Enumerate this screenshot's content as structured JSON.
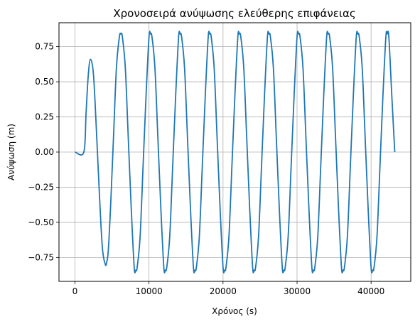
{
  "chart_data": {
    "type": "line",
    "title": "Χρονοσειρά ανύψωσης ελεύθερης επιφάνειας",
    "xlabel": "Χρόνος (s)",
    "ylabel": "Ανύψωση (m)",
    "xlim": [
      -2160,
      45360
    ],
    "ylim": [
      -0.92,
      0.92
    ],
    "xticks": [
      0,
      10000,
      20000,
      30000,
      40000
    ],
    "xtick_labels": [
      "0",
      "10000",
      "20000",
      "30000",
      "40000"
    ],
    "yticks": [
      -0.75,
      -0.5,
      -0.25,
      0.0,
      0.25,
      0.5,
      0.75
    ],
    "ytick_labels": [
      "−0.75",
      "−0.50",
      "−0.25",
      "0.00",
      "0.25",
      "0.50",
      "0.75"
    ],
    "grid": true,
    "line_color": "#1f77b4",
    "series": [
      {
        "x": [
          0,
          1200,
          1500,
          1800,
          2100,
          2500,
          2900,
          3300,
          3700,
          4100,
          4300,
          4500,
          4800,
          5200,
          5600,
          6000,
          6200,
          6400,
          6800,
          7200,
          7600,
          8000,
          8200,
          8400,
          8800,
          9200,
          9600,
          10000,
          10200,
          10400,
          10800,
          11200,
          11600,
          12000,
          12200,
          12400,
          12800,
          13200,
          13600,
          14000,
          14200,
          14400,
          14800,
          15200,
          15600,
          16000,
          16200,
          16400,
          16800,
          17200,
          17600,
          18000,
          18200,
          18400,
          18800,
          19200,
          19600,
          20000,
          20200,
          20400,
          20800,
          21200,
          21600,
          22000,
          22200,
          22400,
          22800,
          23200,
          23600,
          24000,
          24200,
          24400,
          24800,
          25200,
          25600,
          26000,
          26200,
          26400,
          26800,
          27200,
          27600,
          28000,
          28200,
          28400,
          28800,
          29200,
          29600,
          30000,
          30200,
          30400,
          30800,
          31200,
          31600,
          32000,
          32200,
          32400,
          32800,
          33200,
          33600,
          34000,
          34200,
          34400,
          34800,
          35200,
          35600,
          36000,
          36200,
          36400,
          36800,
          37200,
          37600,
          38000,
          38200,
          38400,
          38800,
          39200,
          39600,
          40000,
          40200,
          40400,
          40800,
          41200,
          41600,
          42000,
          42200,
          42400,
          42800,
          43200
        ],
        "y": [
          0.0,
          0.0,
          0.28,
          0.55,
          0.66,
          0.55,
          0.15,
          -0.3,
          -0.68,
          -0.8,
          -0.78,
          -0.7,
          -0.4,
          0.1,
          0.6,
          0.82,
          0.84,
          0.82,
          0.6,
          0.1,
          -0.4,
          -0.82,
          -0.84,
          -0.82,
          -0.6,
          -0.1,
          0.4,
          0.82,
          0.84,
          0.82,
          0.6,
          0.1,
          -0.4,
          -0.82,
          -0.84,
          -0.82,
          -0.6,
          -0.1,
          0.4,
          0.82,
          0.84,
          0.82,
          0.6,
          0.1,
          -0.4,
          -0.82,
          -0.84,
          -0.82,
          -0.6,
          -0.1,
          0.4,
          0.82,
          0.84,
          0.82,
          0.6,
          0.1,
          -0.4,
          -0.82,
          -0.84,
          -0.82,
          -0.6,
          -0.1,
          0.4,
          0.82,
          0.84,
          0.82,
          0.6,
          0.1,
          -0.4,
          -0.82,
          -0.84,
          -0.82,
          -0.6,
          -0.1,
          0.4,
          0.82,
          0.84,
          0.82,
          0.6,
          0.1,
          -0.4,
          -0.82,
          -0.84,
          -0.82,
          -0.6,
          -0.1,
          0.4,
          0.82,
          0.84,
          0.82,
          0.6,
          0.1,
          -0.4,
          -0.82,
          -0.84,
          -0.82,
          -0.6,
          -0.1,
          0.4,
          0.82,
          0.84,
          0.82,
          0.6,
          0.1,
          -0.4,
          -0.82,
          -0.84,
          -0.82,
          -0.6,
          -0.1,
          0.4,
          0.82,
          0.84,
          0.82,
          0.6,
          0.1,
          -0.4,
          -0.82,
          -0.84,
          -0.82,
          -0.6,
          -0.1,
          0.4,
          0.82,
          0.84,
          0.82,
          0.4,
          0.0
        ]
      }
    ]
  }
}
